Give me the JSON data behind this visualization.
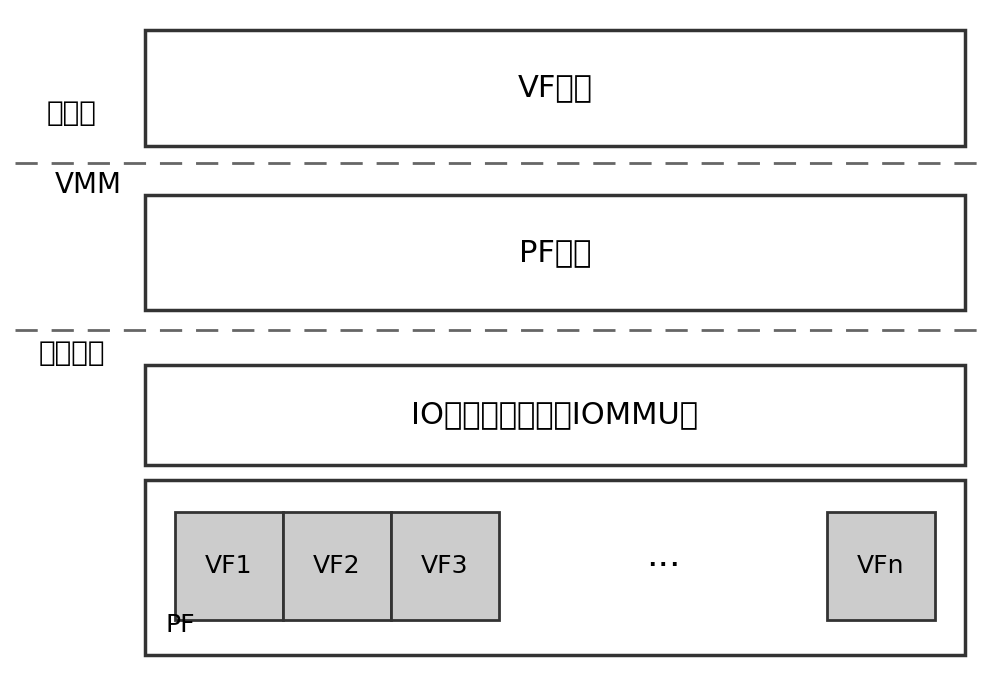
{
  "bg_color": "#ffffff",
  "text_color": "#000000",
  "box_edge_color": "#333333",
  "dashed_line_color": "#666666",
  "vf_box_fill": "#ffffff",
  "pf_sub_box_fill": "#cccccc",
  "label_xuniji": "虚拟机",
  "label_VMM": "VMM",
  "label_wuliziyuan": "物理资源",
  "label_VF": "VF驱动",
  "label_PF": "PF驱动",
  "label_IOMMU": "IO内存控制单元（IOMMU）",
  "label_PF_box": "PF",
  "vf_labels": [
    "VF1",
    "VF2",
    "VF3",
    "···",
    "VFn"
  ],
  "font_size_main": 22,
  "font_size_label": 20,
  "font_size_small": 18,
  "font_size_dots": 26
}
